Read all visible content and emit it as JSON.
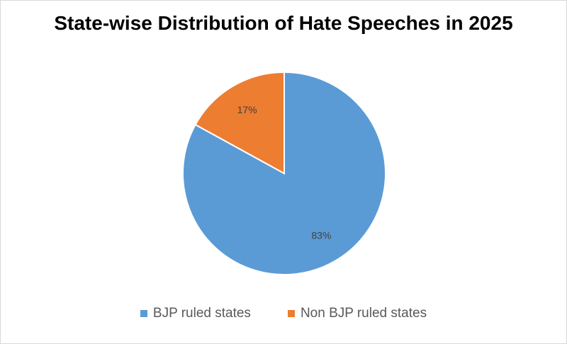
{
  "chart_data": {
    "type": "pie",
    "title": "State-wise Distribution of Hate Speeches in 2025",
    "categories": [
      "BJP ruled states",
      "Non BJP ruled states"
    ],
    "values": [
      83,
      17
    ],
    "data_labels": [
      "83%",
      "17%"
    ],
    "colors": [
      "#5b9bd5",
      "#ed7d31"
    ],
    "legend_position": "bottom",
    "start_angle_deg": 0,
    "direction": "clockwise"
  }
}
